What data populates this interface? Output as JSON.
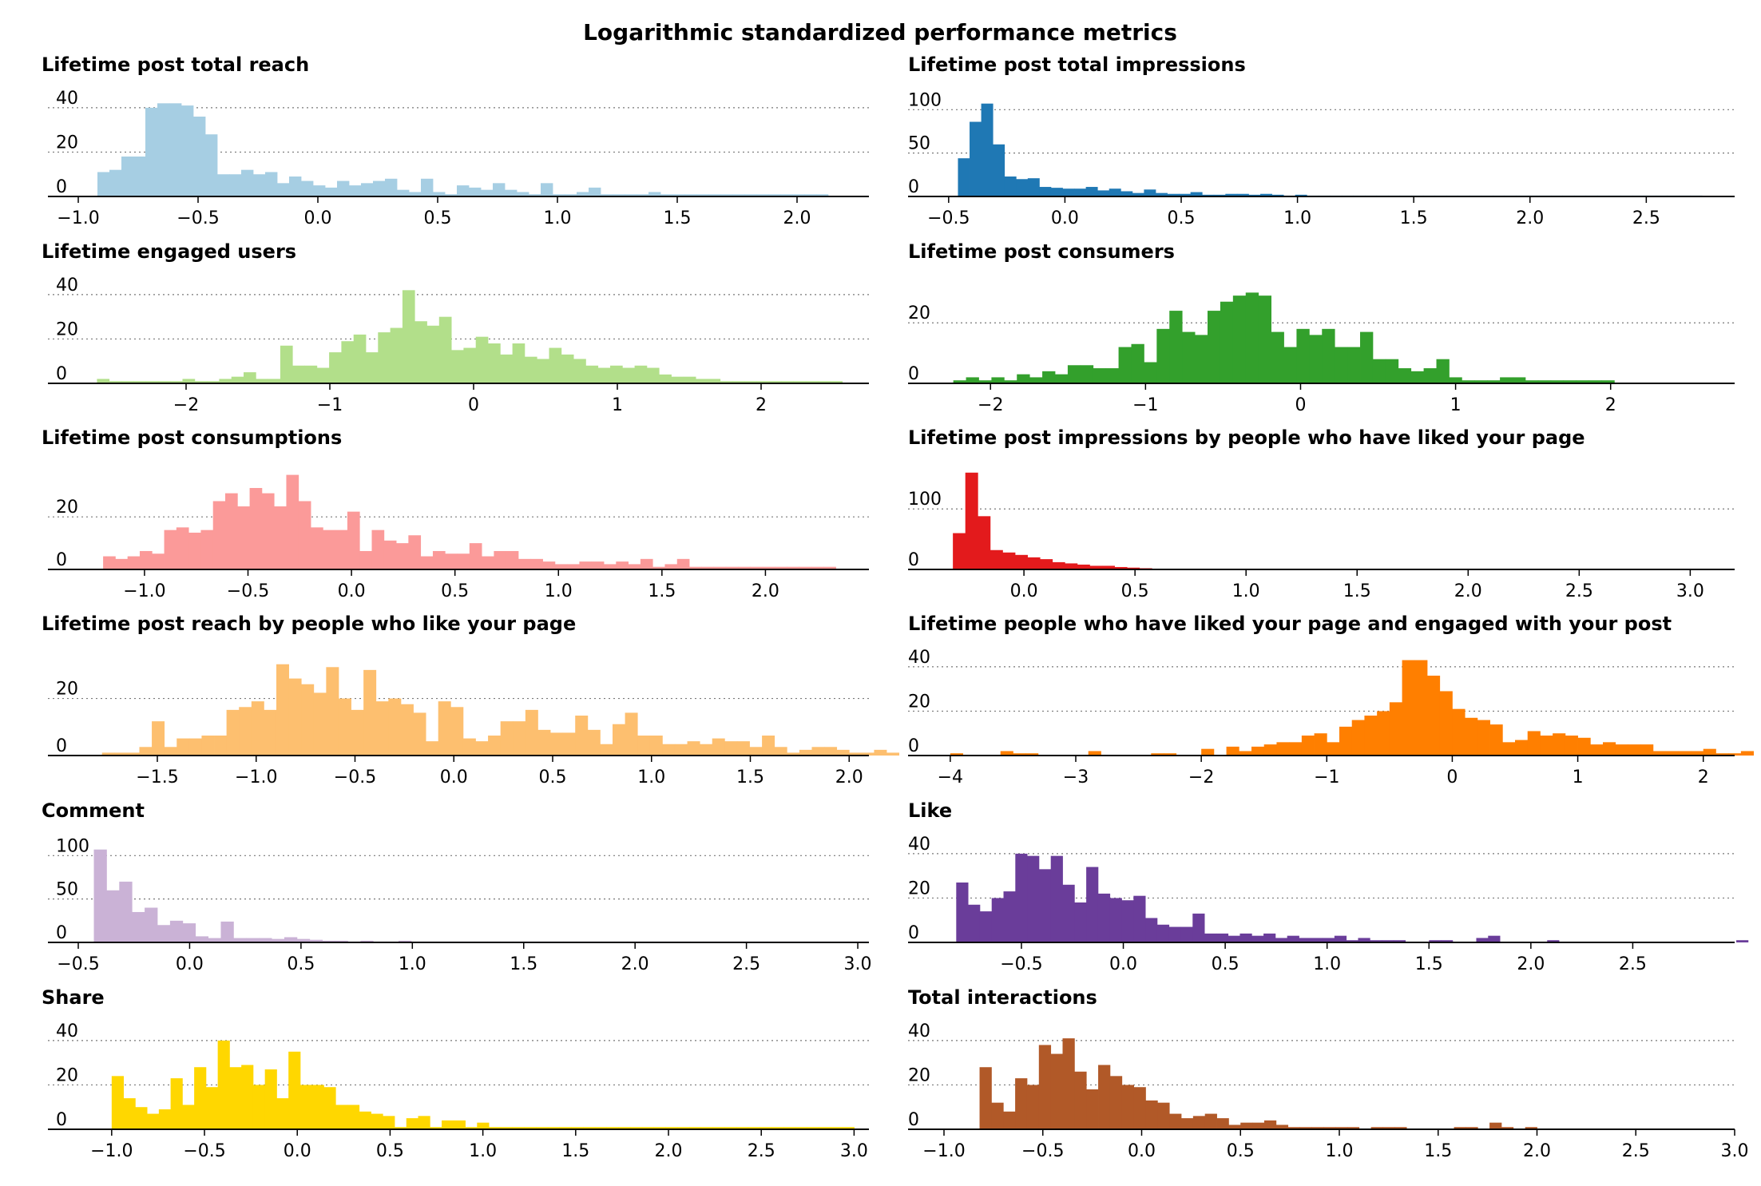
{
  "chart_data": {
    "title": "Logarithmic standardized performance metrics",
    "panels": [
      {
        "title": "Lifetime post total reach",
        "color": "#a6cee3",
        "type": "bar",
        "xlim": [
          -1.0,
          2.3
        ],
        "ylim": [
          0,
          45
        ],
        "xticks": [
          -1.0,
          -0.5,
          0.0,
          0.5,
          1.0,
          1.5,
          2.0
        ],
        "xtick_labels": [
          "−1.0",
          "−0.5",
          "0.0",
          "0.5",
          "1.0",
          "1.5",
          "2.0"
        ],
        "yticks": [
          0,
          20,
          40
        ],
        "ytick_labels": [
          "0",
          "20",
          "40"
        ],
        "bins": {
          "start": -0.92,
          "width": 0.05
        },
        "values": [
          11,
          12,
          18,
          18,
          40,
          42,
          42,
          41,
          36,
          28,
          10,
          10,
          12,
          10,
          11,
          6,
          9,
          7,
          5,
          4,
          7,
          5,
          6,
          7,
          8,
          3,
          2,
          8,
          2,
          1,
          5,
          4,
          3,
          6,
          3,
          2,
          1,
          6,
          1,
          1,
          2,
          4,
          1,
          1,
          1,
          1,
          2,
          1,
          1,
          1,
          1,
          1,
          1,
          1,
          1,
          1,
          1,
          1,
          1,
          1,
          1
        ]
      },
      {
        "title": "Lifetime post total impressions",
        "color": "#1f78b4",
        "type": "bar",
        "xlim": [
          -0.52,
          2.88
        ],
        "ylim": [
          0,
          115
        ],
        "xticks": [
          -0.5,
          0.0,
          0.5,
          1.0,
          1.5,
          2.0,
          2.5
        ],
        "xtick_labels": [
          "−0.5",
          "0.0",
          "0.5",
          "1.0",
          "1.5",
          "2.0",
          "2.5"
        ],
        "yticks": [
          0,
          50,
          100
        ],
        "ytick_labels": [
          "0",
          "50",
          "100"
        ],
        "bins": {
          "start": -0.46,
          "width": 0.05
        },
        "values": [
          44,
          86,
          107,
          60,
          23,
          20,
          21,
          11,
          10,
          9,
          9,
          11,
          7,
          9,
          6,
          4,
          8,
          4,
          3,
          3,
          5,
          2,
          2,
          3,
          3,
          2,
          3,
          2,
          1,
          2,
          1,
          1,
          1,
          1,
          1,
          1,
          1,
          1,
          1,
          1,
          1,
          1,
          1,
          1,
          1,
          1,
          1,
          1,
          1,
          1,
          1,
          1,
          1,
          1,
          1,
          1,
          1,
          1,
          1,
          1,
          1,
          1,
          1,
          1
        ]
      },
      {
        "title": "Lifetime engaged users",
        "color": "#b2df8a",
        "type": "bar",
        "xlim": [
          -2.75,
          2.75
        ],
        "ylim": [
          0,
          45
        ],
        "xticks": [
          -2,
          -1,
          0,
          1,
          2
        ],
        "xtick_labels": [
          "−2",
          "−1",
          "0",
          "1",
          "2"
        ],
        "yticks": [
          0,
          20,
          40
        ],
        "ytick_labels": [
          "0",
          "20",
          "40"
        ],
        "bins": {
          "start": -2.62,
          "width": 0.085
        },
        "values": [
          2,
          1,
          1,
          1,
          1,
          1,
          1,
          2,
          1,
          1,
          2,
          3,
          5,
          2,
          2,
          17,
          8,
          8,
          7,
          14,
          19,
          22,
          14,
          23,
          25,
          42,
          28,
          26,
          30,
          15,
          16,
          21,
          18,
          13,
          18,
          12,
          11,
          16,
          13,
          11,
          8,
          7,
          8,
          7,
          8,
          7,
          4,
          3,
          3,
          2,
          2,
          1,
          1,
          1,
          1,
          1,
          1,
          1,
          1,
          1,
          1
        ]
      },
      {
        "title": "Lifetime post consumers",
        "color": "#33a02c",
        "type": "bar",
        "xlim": [
          -2.3,
          2.8
        ],
        "ylim": [
          0,
          33
        ],
        "xticks": [
          -2,
          -1,
          0,
          1,
          2
        ],
        "xtick_labels": [
          "−2",
          "−1",
          "0",
          "1",
          "2"
        ],
        "yticks": [
          0,
          20
        ],
        "ytick_labels": [
          "0",
          "20"
        ],
        "bins": {
          "start": -2.24,
          "width": 0.082
        },
        "values": [
          1,
          2,
          1,
          2,
          1,
          3,
          2,
          4,
          3,
          6,
          6,
          5,
          5,
          12,
          13,
          7,
          18,
          24,
          17,
          16,
          24,
          27,
          29,
          30,
          29,
          17,
          12,
          18,
          16,
          18,
          12,
          12,
          17,
          8,
          8,
          5,
          4,
          5,
          8,
          2,
          1,
          1,
          1,
          2,
          2,
          1,
          1,
          1,
          1,
          1,
          1,
          1
        ]
      },
      {
        "title": "Lifetime post consumptions",
        "color": "#fb9a99",
        "type": "bar",
        "xlim": [
          -1.32,
          2.5
        ],
        "ylim": [
          0,
          38
        ],
        "xticks": [
          -1.0,
          -0.5,
          0.0,
          0.5,
          1.0,
          1.5,
          2.0
        ],
        "xtick_labels": [
          "−1.0",
          "−0.5",
          "0.0",
          "0.5",
          "1.0",
          "1.5",
          "2.0"
        ],
        "yticks": [
          0,
          20
        ],
        "ytick_labels": [
          "0",
          "20"
        ],
        "bins": {
          "start": -1.2,
          "width": 0.059
        },
        "values": [
          5,
          4,
          5,
          7,
          6,
          15,
          16,
          14,
          15,
          26,
          29,
          24,
          31,
          29,
          24,
          36,
          26,
          16,
          15,
          15,
          22,
          7,
          15,
          11,
          10,
          13,
          5,
          7,
          6,
          6,
          10,
          5,
          7,
          7,
          4,
          4,
          3,
          2,
          2,
          3,
          3,
          2,
          3,
          2,
          4,
          1,
          2,
          4,
          1,
          1,
          1,
          1,
          1,
          1,
          1,
          1,
          1,
          1,
          1,
          1
        ]
      },
      {
        "title": "Lifetime post impressions by people who have liked your page",
        "color": "#e31a1c",
        "type": "bar",
        "xlim": [
          -0.36,
          3.2
        ],
        "ylim": [
          0,
          165
        ],
        "xticks": [
          0.0,
          0.5,
          1.0,
          1.5,
          2.0,
          2.5,
          3.0
        ],
        "xtick_labels": [
          "0.0",
          "0.5",
          "1.0",
          "1.5",
          "2.0",
          "2.5",
          "3.0"
        ],
        "yticks": [
          0,
          100
        ],
        "ytick_labels": [
          "0",
          "100"
        ],
        "bins": {
          "start": -0.32,
          "width": 0.056
        },
        "values": [
          60,
          160,
          88,
          32,
          28,
          24,
          20,
          17,
          12,
          10,
          8,
          6,
          6,
          4,
          3,
          2,
          1,
          1,
          1,
          1,
          1,
          1,
          1,
          1,
          1,
          1,
          1,
          1,
          1,
          1,
          1,
          1,
          1,
          1,
          1,
          1,
          1,
          1,
          1,
          1,
          1,
          1,
          1,
          1,
          1,
          1,
          1,
          1,
          1,
          1,
          1,
          1,
          1,
          1,
          1,
          1,
          1,
          1,
          1
        ]
      },
      {
        "title": "Lifetime post reach by people who like your page",
        "color": "#fdbf6f",
        "type": "bar",
        "xlim": [
          -1.9,
          2.1
        ],
        "ylim": [
          0,
          35
        ],
        "xticks": [
          -1.5,
          -1.0,
          -0.5,
          0.0,
          0.5,
          1.0,
          1.5,
          2.0
        ],
        "xtick_labels": [
          "−1.5",
          "−1.0",
          "−0.5",
          "0.0",
          "0.5",
          "1.0",
          "1.5",
          "2.0"
        ],
        "yticks": [
          0,
          20
        ],
        "ytick_labels": [
          "0",
          "20"
        ],
        "bins": {
          "start": -1.78,
          "width": 0.063
        },
        "values": [
          1,
          1,
          1,
          3,
          12,
          3,
          6,
          6,
          7,
          7,
          16,
          17,
          19,
          16,
          32,
          27,
          25,
          22,
          31,
          20,
          16,
          30,
          19,
          20,
          18,
          15,
          5,
          19,
          17,
          6,
          5,
          7,
          12,
          12,
          16,
          9,
          8,
          8,
          14,
          9,
          4,
          11,
          15,
          7,
          7,
          4,
          4,
          5,
          4,
          6,
          5,
          5,
          3,
          7,
          3,
          1,
          2,
          3,
          3,
          2,
          1,
          1,
          2,
          1
        ]
      },
      {
        "title": "Lifetime people who have liked your page and engaged with your post",
        "color": "#ff7f00",
        "type": "bar",
        "xlim": [
          -4.05,
          2.25
        ],
        "ylim": [
          0,
          45
        ],
        "xticks": [
          -4,
          -3,
          -2,
          -1,
          0,
          1,
          2
        ],
        "xtick_labels": [
          "−4",
          "−3",
          "−2",
          "−1",
          "0",
          "1",
          "2"
        ],
        "yticks": [
          0,
          20,
          40
        ],
        "ytick_labels": [
          "0",
          "20",
          "40"
        ],
        "bins": {
          "start": -4.0,
          "width": 0.1
        },
        "values": [
          1,
          0,
          0,
          0,
          2,
          1,
          1,
          0,
          0,
          0,
          0,
          2,
          0,
          0,
          0,
          0,
          1,
          1,
          0,
          0,
          3,
          0,
          4,
          2,
          4,
          5,
          6,
          6,
          9,
          10,
          6,
          13,
          16,
          18,
          20,
          24,
          43,
          43,
          36,
          29,
          21,
          17,
          16,
          14,
          6,
          7,
          11,
          9,
          10,
          9,
          8,
          5,
          6,
          5,
          5,
          5,
          2,
          2,
          2,
          2,
          3,
          1,
          1,
          2
        ]
      },
      {
        "title": "Comment",
        "color": "#cab2d6",
        "type": "bar",
        "xlim": [
          -0.5,
          3.05
        ],
        "ylim": [
          0,
          115
        ],
        "xticks": [
          -0.5,
          0.0,
          0.5,
          1.0,
          1.5,
          2.0,
          2.5,
          3.0
        ],
        "xtick_labels": [
          "−0.5",
          "0.0",
          "0.5",
          "1.0",
          "1.5",
          "2.0",
          "2.5",
          "3.0"
        ],
        "yticks": [
          0,
          50,
          100
        ],
        "ytick_labels": [
          "0",
          "50",
          "100"
        ],
        "bins": {
          "start": -0.43,
          "width": 0.057
        },
        "values": [
          107,
          60,
          70,
          35,
          40,
          20,
          25,
          22,
          7,
          5,
          24,
          5,
          5,
          5,
          4,
          6,
          4,
          3,
          2,
          2,
          1,
          2,
          1,
          1,
          2,
          1,
          1,
          1,
          1,
          1,
          1,
          1,
          1,
          1,
          1,
          1,
          1,
          1,
          1,
          1,
          1,
          1,
          1,
          1,
          1,
          1,
          1,
          1,
          1,
          1,
          1,
          1,
          1,
          1,
          1,
          1,
          1,
          1,
          1,
          1,
          1
        ]
      },
      {
        "title": "Like",
        "color": "#6a3d9a",
        "type": "bar",
        "xlim": [
          -0.88,
          3.0
        ],
        "ylim": [
          0,
          45
        ],
        "xticks": [
          -0.5,
          0.0,
          0.5,
          1.0,
          1.5,
          2.0,
          2.5
        ],
        "xtick_labels": [
          "−0.5",
          "0.0",
          "0.5",
          "1.0",
          "1.5",
          "2.0",
          "2.5"
        ],
        "yticks": [
          0,
          20,
          40
        ],
        "ytick_labels": [
          "0",
          "20",
          "40"
        ],
        "bins": {
          "start": -0.82,
          "width": 0.058
        },
        "values": [
          27,
          17,
          14,
          20,
          23,
          40,
          39,
          33,
          39,
          26,
          18,
          34,
          22,
          20,
          19,
          21,
          11,
          8,
          7,
          7,
          13,
          4,
          4,
          3,
          4,
          3,
          4,
          2,
          3,
          2,
          2,
          2,
          3,
          1,
          2,
          1,
          1,
          1,
          0,
          0,
          1,
          1,
          0,
          0,
          2,
          3,
          0,
          0,
          0,
          0,
          1,
          0,
          0,
          0,
          0,
          0,
          0,
          0,
          0,
          0,
          0,
          0,
          0,
          0,
          0,
          0,
          1
        ]
      },
      {
        "title": "Share",
        "color": "#ffd700",
        "type": "bar",
        "xlim": [
          -1.18,
          3.08
        ],
        "ylim": [
          0,
          45
        ],
        "xticks": [
          -1.0,
          -0.5,
          0.0,
          0.5,
          1.0,
          1.5,
          2.0,
          2.5,
          3.0
        ],
        "xtick_labels": [
          "−1.0",
          "−0.5",
          "0.0",
          "0.5",
          "1.0",
          "1.5",
          "2.0",
          "2.5",
          "3.0"
        ],
        "yticks": [
          0,
          20,
          40
        ],
        "ytick_labels": [
          "0",
          "20",
          "40"
        ],
        "bins": {
          "start": -1.0,
          "width": 0.0635
        },
        "values": [
          24,
          14,
          10,
          7,
          9,
          23,
          11,
          28,
          19,
          40,
          28,
          29,
          20,
          27,
          14,
          35,
          20,
          20,
          19,
          11,
          11,
          8,
          7,
          6,
          1,
          5,
          6,
          1,
          4,
          4,
          1,
          3,
          1,
          1,
          1,
          1,
          1,
          1,
          1,
          1,
          1,
          1,
          1,
          1,
          1,
          1,
          1,
          1,
          1,
          1,
          1,
          1,
          1,
          1,
          1,
          1,
          1,
          1,
          1,
          1,
          1,
          1,
          1
        ]
      },
      {
        "title": "Total interactions",
        "color": "#b15928",
        "type": "bar",
        "xlim": [
          -1.0,
          3.0
        ],
        "ylim": [
          0,
          45
        ],
        "xticks": [
          -1.0,
          -0.5,
          0.0,
          0.5,
          1.0,
          1.5,
          2.0,
          2.5,
          3.0
        ],
        "xtick_labels": [
          "−1.0",
          "−0.5",
          "0.0",
          "0.5",
          "1.0",
          "1.5",
          "2.0",
          "2.5",
          "3.0"
        ],
        "yticks": [
          0,
          20,
          40
        ],
        "ytick_labels": [
          "0",
          "20",
          "40"
        ],
        "bins": {
          "start": -0.82,
          "width": 0.06
        },
        "values": [
          28,
          12,
          8,
          23,
          20,
          38,
          34,
          41,
          26,
          18,
          29,
          24,
          20,
          19,
          13,
          12,
          7,
          5,
          6,
          7,
          5,
          2,
          3,
          3,
          4,
          2,
          1,
          1,
          1,
          1,
          1,
          1,
          0,
          1,
          1,
          1,
          0,
          0,
          0,
          0,
          1,
          1,
          0,
          3,
          1,
          0,
          1,
          0,
          0,
          0,
          0,
          0,
          0,
          0,
          0,
          0,
          0,
          0,
          0,
          0,
          0,
          0,
          0,
          0,
          0,
          0,
          0,
          0,
          0,
          0,
          1
        ]
      }
    ]
  }
}
